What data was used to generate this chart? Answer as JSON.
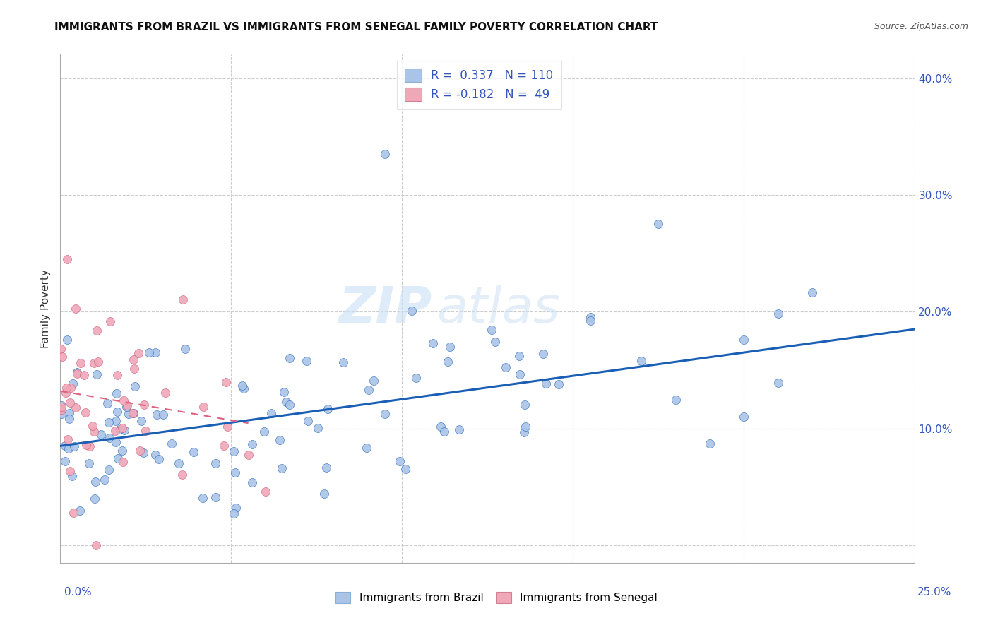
{
  "title": "IMMIGRANTS FROM BRAZIL VS IMMIGRANTS FROM SENEGAL FAMILY POVERTY CORRELATION CHART",
  "source": "Source: ZipAtlas.com",
  "ylabel": "Family Poverty",
  "legend_brazil": "Immigrants from Brazil",
  "legend_senegal": "Immigrants from Senegal",
  "R_brazil": 0.337,
  "N_brazil": 110,
  "R_senegal": -0.182,
  "N_senegal": 49,
  "color_brazil": "#aac4e8",
  "color_senegal": "#f0a8b8",
  "line_brazil": "#1a5fb4",
  "line_senegal": "#e06080",
  "xlim": [
    0.0,
    0.25
  ],
  "ylim": [
    -0.015,
    0.42
  ],
  "watermark_zip": "ZIP",
  "watermark_atlas": "atlas"
}
